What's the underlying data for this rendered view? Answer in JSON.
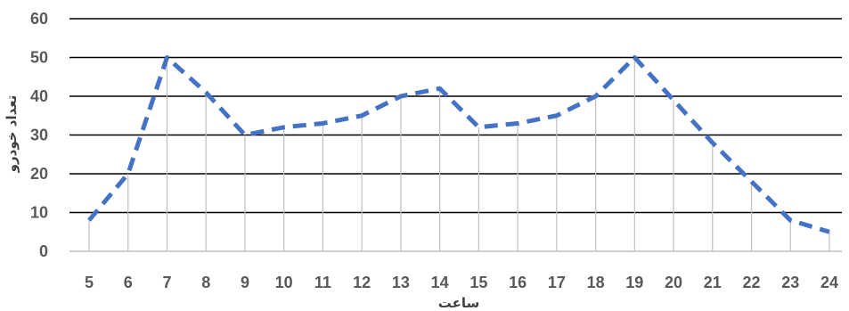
{
  "chart_data": {
    "type": "line",
    "title": "",
    "xlabel": "ساعت",
    "ylabel": "تعداد خودرو",
    "x": [
      5,
      6,
      7,
      8,
      9,
      10,
      11,
      12,
      13,
      14,
      15,
      16,
      17,
      18,
      19,
      20,
      21,
      22,
      23,
      24
    ],
    "series": [
      {
        "values": [
          8,
          20,
          50,
          41,
          30,
          32,
          33,
          35,
          40,
          42,
          32,
          33,
          35,
          40,
          50,
          39,
          28,
          18,
          8,
          5
        ],
        "color": "#4472C4",
        "style": "dashed"
      }
    ],
    "ylim": [
      0,
      60
    ],
    "yticks": [
      0,
      10,
      20,
      30,
      40,
      50,
      60
    ],
    "grid": true,
    "drop_lines": true,
    "legend": "none"
  }
}
